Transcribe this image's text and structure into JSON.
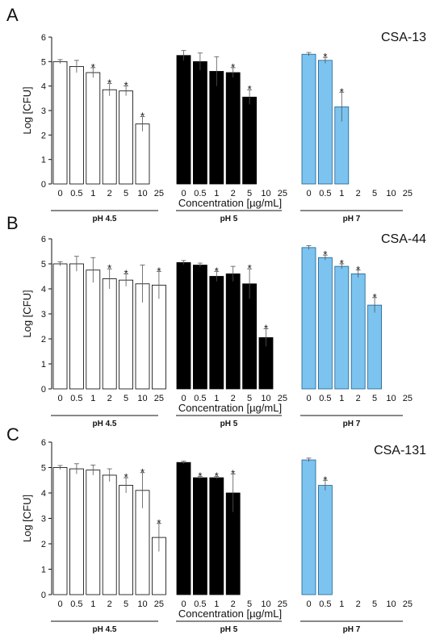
{
  "chart_data": [
    {
      "type": "bar",
      "panel": "A",
      "title": "CSA-13",
      "ylabel": "Log [CFU]",
      "xlabel": "Concentration [µg/mL]",
      "ylim": [
        0,
        6
      ],
      "yticks": [
        "0",
        "1",
        "2",
        "3",
        "4",
        "5",
        "6"
      ],
      "categories": [
        "0",
        "0.5",
        "1",
        "2",
        "5",
        "10",
        "25"
      ],
      "colors": {
        "pH 4.5": "#ffffff",
        "pH 5": "#000000",
        "pH 7": "#7cc4ef"
      },
      "groups": [
        {
          "label": "pH 4.5",
          "values": [
            5.0,
            4.8,
            4.55,
            3.85,
            3.8,
            2.45,
            null
          ],
          "errors": [
            0.08,
            0.25,
            0.2,
            0.25,
            0.2,
            0.3,
            null
          ],
          "sig": [
            false,
            false,
            true,
            true,
            true,
            true,
            false
          ]
        },
        {
          "label": "pH 5",
          "values": [
            5.25,
            5.0,
            4.6,
            4.55,
            3.55,
            null,
            null
          ],
          "errors": [
            0.2,
            0.35,
            0.6,
            0.2,
            0.3,
            null,
            null
          ],
          "sig": [
            false,
            false,
            false,
            true,
            true,
            false,
            false
          ]
        },
        {
          "label": "pH 7",
          "values": [
            5.3,
            5.05,
            3.15,
            null,
            null,
            null,
            null
          ],
          "errors": [
            0.07,
            0.12,
            0.6,
            null,
            null,
            null,
            null
          ],
          "sig": [
            false,
            true,
            true,
            false,
            false,
            false,
            false
          ]
        }
      ]
    },
    {
      "type": "bar",
      "panel": "B",
      "title": "CSA-44",
      "ylabel": "Log [CFU]",
      "xlabel": "Concentration [µg/mL]",
      "ylim": [
        0,
        6
      ],
      "yticks": [
        "0",
        "1",
        "2",
        "3",
        "4",
        "5",
        "6"
      ],
      "categories": [
        "0",
        "0.5",
        "1",
        "2",
        "5",
        "10",
        "25"
      ],
      "colors": {
        "pH 4.5": "#ffffff",
        "pH 5": "#000000",
        "pH 7": "#7cc4ef"
      },
      "groups": [
        {
          "label": "pH 4.5",
          "values": [
            5.0,
            5.0,
            4.75,
            4.4,
            4.35,
            4.2,
            4.15
          ],
          "errors": [
            0.08,
            0.3,
            0.5,
            0.4,
            0.25,
            0.75,
            0.55
          ],
          "sig": [
            false,
            false,
            false,
            true,
            true,
            false,
            true
          ]
        },
        {
          "label": "pH 5",
          "values": [
            5.05,
            4.95,
            4.5,
            4.6,
            4.2,
            2.05,
            null
          ],
          "errors": [
            0.08,
            0.08,
            0.2,
            0.3,
            0.6,
            0.35,
            null
          ],
          "sig": [
            false,
            false,
            true,
            false,
            true,
            true,
            false
          ]
        },
        {
          "label": "pH 7",
          "values": [
            5.65,
            5.25,
            4.9,
            4.6,
            3.35,
            null,
            null
          ],
          "errors": [
            0.08,
            0.1,
            0.1,
            0.15,
            0.3,
            null,
            null
          ],
          "sig": [
            false,
            true,
            true,
            true,
            true,
            false,
            false
          ]
        }
      ]
    },
    {
      "type": "bar",
      "panel": "C",
      "title": "CSA-131",
      "ylabel": "Log [CFU]",
      "xlabel": "Concentration [µg/mL]",
      "ylim": [
        0,
        6
      ],
      "yticks": [
        "0",
        "1",
        "2",
        "3",
        "4",
        "5",
        "6"
      ],
      "categories": [
        "0",
        "0.5",
        "1",
        "2",
        "5",
        "10",
        "25"
      ],
      "colors": {
        "pH 4.5": "#ffffff",
        "pH 5": "#000000",
        "pH 7": "#7cc4ef"
      },
      "groups": [
        {
          "label": "pH 4.5",
          "values": [
            5.0,
            4.95,
            4.9,
            4.7,
            4.3,
            4.1,
            2.25
          ],
          "errors": [
            0.08,
            0.2,
            0.2,
            0.25,
            0.3,
            0.7,
            0.55
          ],
          "sig": [
            false,
            false,
            false,
            false,
            true,
            true,
            true
          ]
        },
        {
          "label": "pH 5",
          "values": [
            5.2,
            4.6,
            4.6,
            4.0,
            null,
            null,
            null
          ],
          "errors": [
            0.05,
            0.05,
            0.05,
            0.75,
            null,
            null,
            null
          ],
          "sig": [
            false,
            true,
            true,
            true,
            false,
            false,
            false
          ]
        },
        {
          "label": "pH 7",
          "values": [
            5.3,
            4.3,
            null,
            null,
            null,
            null,
            null
          ],
          "errors": [
            0.07,
            0.2,
            null,
            null,
            null,
            null,
            null
          ],
          "sig": [
            false,
            true,
            false,
            false,
            false,
            false,
            false
          ]
        }
      ]
    }
  ]
}
